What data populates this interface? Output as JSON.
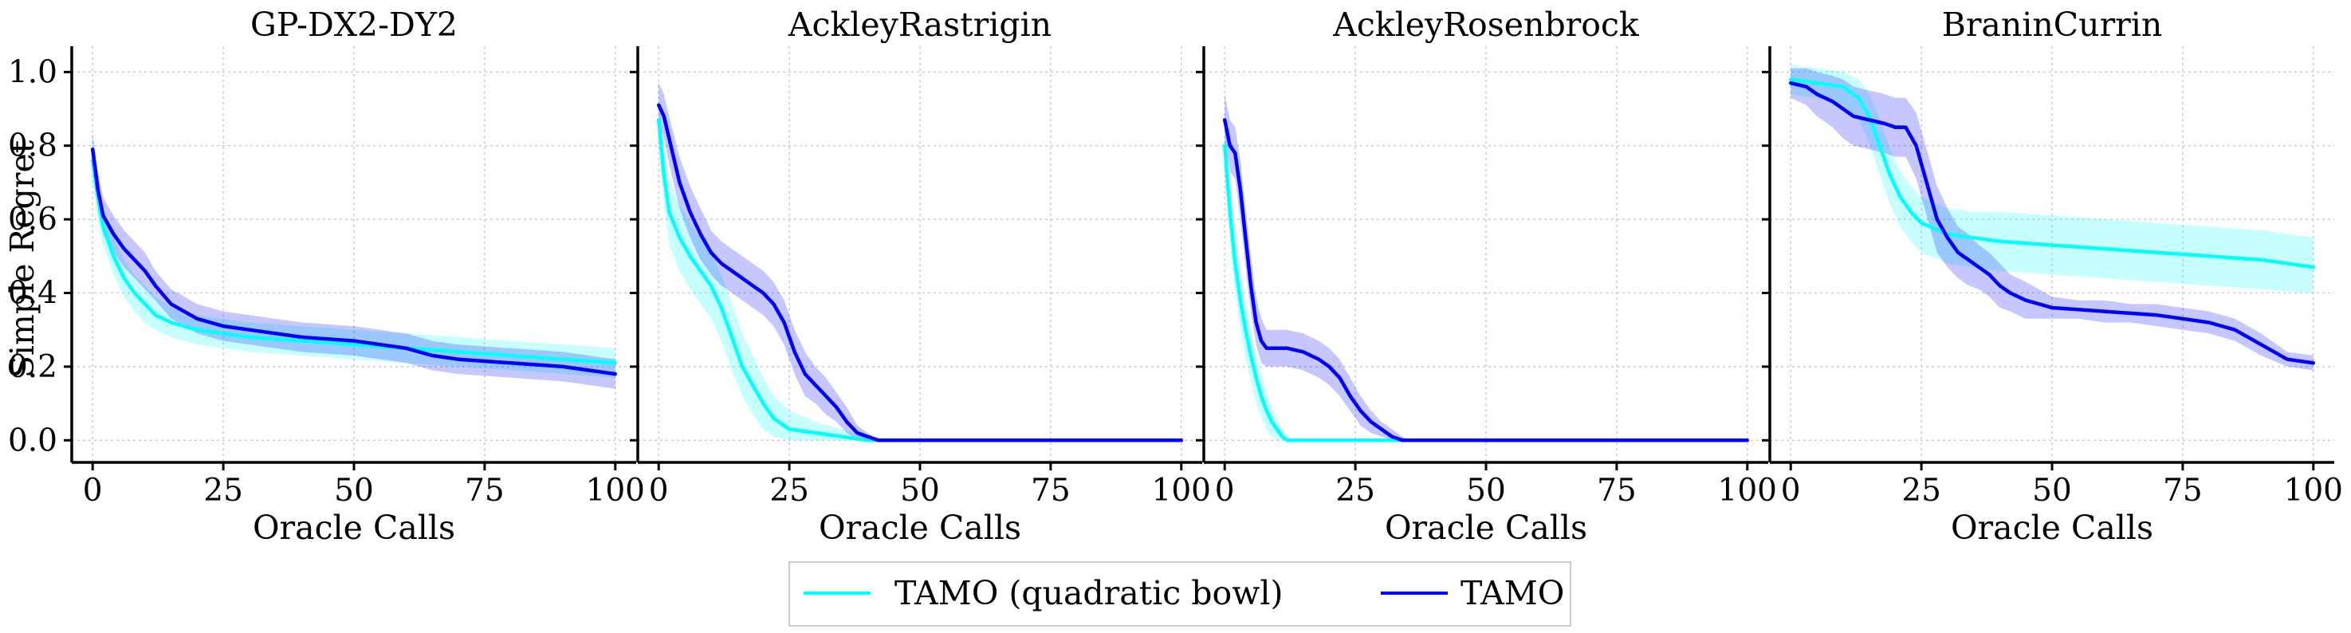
{
  "colors": {
    "tamo_quadratic_bowl": "#00ffff",
    "tamo": "#0000ff",
    "axis": "#000000",
    "grid": "#cccccc"
  },
  "shared": {
    "ylabel": "Simple Regret",
    "xlabel": "Oracle Calls",
    "xticks": [
      0,
      25,
      50,
      75,
      100
    ],
    "yticks": [
      0.0,
      0.2,
      0.4,
      0.6,
      0.8,
      1.0
    ],
    "ytick_labels": [
      "0.0",
      "0.2",
      "0.4",
      "0.6",
      "0.8",
      "1.0"
    ],
    "xlim": [
      -4,
      104
    ],
    "ylim": [
      -0.06,
      1.07
    ],
    "grid": true,
    "legend_placement": "bottom-center"
  },
  "legend": {
    "items": [
      {
        "label": "TAMO (quadratic bowl)",
        "color": "#00ffff"
      },
      {
        "label": "TAMO",
        "color": "#0000ff"
      }
    ]
  },
  "chart_data": [
    {
      "type": "line",
      "title": "GP-DX2-DY2",
      "xlabel": "Oracle Calls",
      "ylabel": "Simple Regret",
      "xlim": [
        -4,
        104
      ],
      "ylim": [
        -0.06,
        1.07
      ],
      "series": [
        {
          "name": "TAMO (quadratic bowl)",
          "x": [
            0,
            1,
            2,
            4,
            6,
            8,
            10,
            12,
            15,
            20,
            25,
            30,
            40,
            50,
            60,
            70,
            80,
            90,
            100
          ],
          "y": [
            0.76,
            0.66,
            0.58,
            0.5,
            0.44,
            0.4,
            0.37,
            0.34,
            0.32,
            0.3,
            0.29,
            0.28,
            0.27,
            0.26,
            0.25,
            0.24,
            0.23,
            0.22,
            0.21
          ],
          "lower": [
            0.7,
            0.6,
            0.53,
            0.45,
            0.39,
            0.35,
            0.32,
            0.3,
            0.28,
            0.26,
            0.25,
            0.24,
            0.23,
            0.22,
            0.21,
            0.2,
            0.19,
            0.18,
            0.17
          ],
          "upper": [
            0.82,
            0.72,
            0.63,
            0.55,
            0.49,
            0.45,
            0.42,
            0.39,
            0.36,
            0.34,
            0.33,
            0.32,
            0.31,
            0.3,
            0.29,
            0.28,
            0.27,
            0.26,
            0.25
          ]
        },
        {
          "name": "TAMO",
          "x": [
            0,
            1,
            2,
            4,
            6,
            8,
            10,
            12,
            15,
            20,
            25,
            30,
            40,
            50,
            60,
            65,
            70,
            80,
            90,
            95,
            100
          ],
          "y": [
            0.79,
            0.68,
            0.61,
            0.56,
            0.52,
            0.49,
            0.46,
            0.42,
            0.37,
            0.33,
            0.31,
            0.3,
            0.28,
            0.27,
            0.25,
            0.23,
            0.22,
            0.21,
            0.2,
            0.19,
            0.18
          ],
          "lower": [
            0.75,
            0.63,
            0.56,
            0.51,
            0.47,
            0.44,
            0.41,
            0.38,
            0.33,
            0.29,
            0.27,
            0.26,
            0.24,
            0.23,
            0.21,
            0.19,
            0.18,
            0.17,
            0.16,
            0.15,
            0.14
          ],
          "upper": [
            0.83,
            0.73,
            0.66,
            0.61,
            0.57,
            0.54,
            0.51,
            0.46,
            0.41,
            0.37,
            0.35,
            0.34,
            0.32,
            0.31,
            0.29,
            0.27,
            0.26,
            0.25,
            0.24,
            0.23,
            0.22
          ]
        }
      ]
    },
    {
      "type": "line",
      "title": "AckleyRastrigin",
      "xlabel": "Oracle Calls",
      "ylabel": "Simple Regret",
      "xlim": [
        -4,
        104
      ],
      "ylim": [
        -0.06,
        1.07
      ],
      "series": [
        {
          "name": "TAMO (quadratic bowl)",
          "x": [
            0,
            1,
            2,
            4,
            6,
            8,
            10,
            12,
            14,
            16,
            18,
            20,
            22,
            25,
            30,
            35,
            40,
            50,
            60,
            80,
            100
          ],
          "y": [
            0.87,
            0.72,
            0.62,
            0.55,
            0.5,
            0.46,
            0.42,
            0.36,
            0.28,
            0.2,
            0.15,
            0.1,
            0.06,
            0.03,
            0.02,
            0.01,
            0.0,
            0.0,
            0.0,
            0.0,
            0.0
          ],
          "lower": [
            0.8,
            0.64,
            0.53,
            0.46,
            0.41,
            0.37,
            0.33,
            0.27,
            0.19,
            0.12,
            0.07,
            0.03,
            0.01,
            0.0,
            0.0,
            0.0,
            0.0,
            0.0,
            0.0,
            0.0,
            0.0
          ],
          "upper": [
            0.94,
            0.8,
            0.71,
            0.64,
            0.59,
            0.55,
            0.51,
            0.45,
            0.37,
            0.29,
            0.23,
            0.17,
            0.12,
            0.08,
            0.05,
            0.03,
            0.01,
            0.0,
            0.0,
            0.0,
            0.0
          ]
        },
        {
          "name": "TAMO",
          "x": [
            0,
            1,
            2,
            4,
            6,
            8,
            10,
            12,
            15,
            18,
            20,
            22,
            24,
            26,
            28,
            30,
            32,
            34,
            36,
            38,
            40,
            42,
            45,
            50,
            60,
            80,
            100
          ],
          "y": [
            0.91,
            0.88,
            0.82,
            0.7,
            0.62,
            0.56,
            0.51,
            0.48,
            0.45,
            0.42,
            0.4,
            0.37,
            0.32,
            0.24,
            0.18,
            0.15,
            0.12,
            0.09,
            0.05,
            0.02,
            0.01,
            0.0,
            0.0,
            0.0,
            0.0,
            0.0,
            0.0
          ],
          "lower": [
            0.86,
            0.82,
            0.75,
            0.63,
            0.55,
            0.49,
            0.45,
            0.42,
            0.39,
            0.36,
            0.34,
            0.31,
            0.26,
            0.18,
            0.12,
            0.1,
            0.07,
            0.05,
            0.02,
            0.0,
            0.0,
            0.0,
            0.0,
            0.0,
            0.0,
            0.0,
            0.0
          ],
          "upper": [
            0.97,
            0.94,
            0.88,
            0.77,
            0.69,
            0.63,
            0.57,
            0.54,
            0.51,
            0.48,
            0.46,
            0.43,
            0.38,
            0.3,
            0.24,
            0.2,
            0.17,
            0.13,
            0.09,
            0.04,
            0.02,
            0.0,
            0.0,
            0.0,
            0.0,
            0.0,
            0.0
          ]
        }
      ]
    },
    {
      "type": "line",
      "title": "AckleyRosenbrock",
      "xlabel": "Oracle Calls",
      "ylabel": "Simple Regret",
      "xlim": [
        -4,
        104
      ],
      "ylim": [
        -0.06,
        1.07
      ],
      "series": [
        {
          "name": "TAMO (quadratic bowl)",
          "x": [
            0,
            1,
            2,
            3,
            4,
            5,
            6,
            7,
            8,
            9,
            10,
            11,
            12,
            14,
            16,
            20,
            30,
            50,
            100
          ],
          "y": [
            0.8,
            0.62,
            0.48,
            0.38,
            0.3,
            0.23,
            0.17,
            0.12,
            0.08,
            0.05,
            0.03,
            0.01,
            0.0,
            0.0,
            0.0,
            0.0,
            0.0,
            0.0,
            0.0
          ],
          "lower": [
            0.72,
            0.54,
            0.4,
            0.3,
            0.22,
            0.16,
            0.1,
            0.06,
            0.03,
            0.01,
            0.0,
            0.0,
            0.0,
            0.0,
            0.0,
            0.0,
            0.0,
            0.0,
            0.0
          ],
          "upper": [
            0.88,
            0.7,
            0.56,
            0.46,
            0.38,
            0.3,
            0.24,
            0.18,
            0.13,
            0.09,
            0.06,
            0.03,
            0.01,
            0.0,
            0.0,
            0.0,
            0.0,
            0.0,
            0.0
          ]
        },
        {
          "name": "TAMO",
          "x": [
            0,
            1,
            2,
            3,
            4,
            5,
            6,
            7,
            8,
            9,
            10,
            12,
            15,
            18,
            20,
            22,
            24,
            26,
            28,
            30,
            32,
            34,
            36,
            40,
            50,
            100
          ],
          "y": [
            0.87,
            0.8,
            0.78,
            0.68,
            0.55,
            0.42,
            0.32,
            0.27,
            0.25,
            0.25,
            0.25,
            0.25,
            0.24,
            0.22,
            0.2,
            0.17,
            0.12,
            0.08,
            0.05,
            0.03,
            0.01,
            0.0,
            0.0,
            0.0,
            0.0,
            0.0
          ],
          "lower": [
            0.8,
            0.73,
            0.71,
            0.6,
            0.47,
            0.35,
            0.26,
            0.21,
            0.2,
            0.2,
            0.2,
            0.2,
            0.19,
            0.17,
            0.15,
            0.12,
            0.08,
            0.04,
            0.02,
            0.01,
            0.0,
            0.0,
            0.0,
            0.0,
            0.0,
            0.0
          ],
          "upper": [
            0.94,
            0.87,
            0.85,
            0.76,
            0.63,
            0.5,
            0.39,
            0.33,
            0.3,
            0.3,
            0.3,
            0.3,
            0.29,
            0.27,
            0.25,
            0.22,
            0.17,
            0.12,
            0.08,
            0.05,
            0.03,
            0.01,
            0.0,
            0.0,
            0.0,
            0.0
          ]
        }
      ]
    },
    {
      "type": "line",
      "title": "BraninCurrin",
      "xlabel": "Oracle Calls",
      "ylabel": "Simple Regret",
      "xlim": [
        -4,
        104
      ],
      "ylim": [
        -0.06,
        1.07
      ],
      "series": [
        {
          "name": "TAMO (quadratic bowl)",
          "x": [
            0,
            5,
            10,
            13,
            15,
            17,
            19,
            21,
            23,
            25,
            30,
            35,
            40,
            50,
            60,
            70,
            80,
            90,
            100
          ],
          "y": [
            0.98,
            0.97,
            0.96,
            0.93,
            0.88,
            0.8,
            0.72,
            0.66,
            0.62,
            0.59,
            0.56,
            0.55,
            0.54,
            0.53,
            0.52,
            0.51,
            0.5,
            0.49,
            0.47
          ],
          "lower": [
            0.94,
            0.93,
            0.91,
            0.87,
            0.81,
            0.72,
            0.64,
            0.58,
            0.54,
            0.51,
            0.48,
            0.47,
            0.46,
            0.45,
            0.44,
            0.43,
            0.42,
            0.41,
            0.4
          ],
          "upper": [
            1.02,
            1.01,
            1.0,
            0.98,
            0.94,
            0.87,
            0.79,
            0.73,
            0.69,
            0.66,
            0.63,
            0.62,
            0.62,
            0.61,
            0.6,
            0.59,
            0.58,
            0.57,
            0.55
          ]
        },
        {
          "name": "TAMO",
          "x": [
            0,
            3,
            5,
            8,
            10,
            12,
            15,
            18,
            20,
            22,
            24,
            26,
            28,
            30,
            32,
            34,
            36,
            38,
            40,
            42,
            45,
            50,
            55,
            60,
            65,
            70,
            75,
            80,
            85,
            90,
            95,
            100
          ],
          "y": [
            0.97,
            0.96,
            0.94,
            0.92,
            0.9,
            0.88,
            0.87,
            0.86,
            0.85,
            0.85,
            0.8,
            0.7,
            0.6,
            0.55,
            0.51,
            0.49,
            0.47,
            0.45,
            0.42,
            0.4,
            0.38,
            0.36,
            0.355,
            0.35,
            0.345,
            0.34,
            0.33,
            0.32,
            0.3,
            0.26,
            0.22,
            0.21
          ],
          "lower": [
            0.93,
            0.91,
            0.88,
            0.85,
            0.82,
            0.8,
            0.79,
            0.78,
            0.77,
            0.77,
            0.71,
            0.61,
            0.51,
            0.47,
            0.44,
            0.42,
            0.41,
            0.39,
            0.36,
            0.35,
            0.33,
            0.33,
            0.33,
            0.32,
            0.32,
            0.31,
            0.3,
            0.29,
            0.27,
            0.23,
            0.2,
            0.19
          ],
          "upper": [
            1.01,
            1.01,
            1.0,
            0.99,
            0.98,
            0.96,
            0.95,
            0.94,
            0.93,
            0.93,
            0.89,
            0.79,
            0.69,
            0.63,
            0.58,
            0.56,
            0.53,
            0.51,
            0.48,
            0.45,
            0.43,
            0.39,
            0.38,
            0.38,
            0.37,
            0.37,
            0.36,
            0.35,
            0.33,
            0.29,
            0.24,
            0.23
          ]
        }
      ]
    }
  ]
}
